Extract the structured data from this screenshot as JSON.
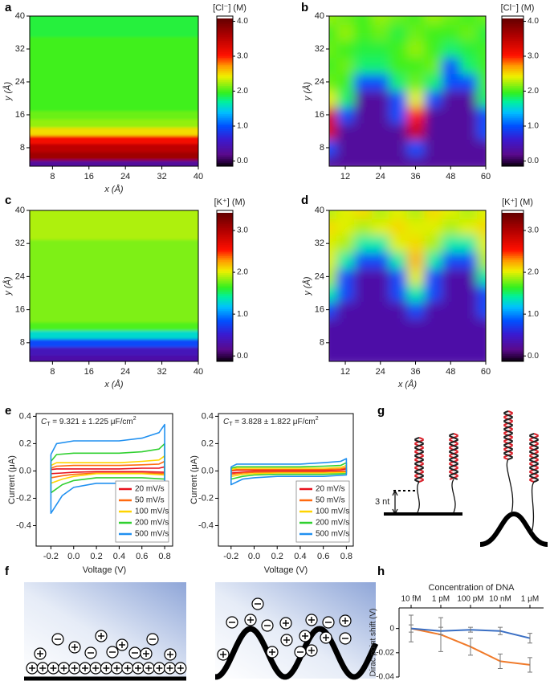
{
  "chart_data": [
    {
      "type": "heatmap",
      "panel": "a",
      "xlabel": "x (Å)",
      "ylabel": "y (Å)",
      "colorbar_label": "[Cl⁻] (M)",
      "y": [
        4,
        6,
        8,
        10,
        12,
        14,
        16,
        18,
        20,
        22,
        24,
        26,
        28,
        30,
        32,
        34,
        36,
        38,
        40
      ],
      "values": [
        0.3,
        3.7,
        3.5,
        3.1,
        2.5,
        2.2,
        2.1,
        2.0,
        2.0,
        2.0,
        2.0,
        2.0,
        2.0,
        2.0,
        2.0,
        2.0,
        1.9,
        1.9,
        1.9
      ],
      "xlim": [
        3,
        40
      ],
      "ylim": [
        3.5,
        40
      ],
      "xticks": [
        8,
        16,
        24,
        32,
        40
      ],
      "yticks": [
        8,
        16,
        24,
        32,
        40
      ],
      "clim": [
        -0.15,
        4.15
      ],
      "cticks": [
        {
          "value": 0,
          "label": "0.0"
        },
        {
          "value": 1,
          "label": "1.0"
        },
        {
          "value": 2,
          "label": "2.0"
        },
        {
          "value": 3,
          "label": "3.0"
        },
        {
          "value": 4,
          "label": "4.0"
        }
      ]
    },
    {
      "type": "heatmap",
      "panel": "b",
      "ylabel": "y (Å)",
      "colorbar_label": "[Cl⁻] (M)",
      "x": [
        6,
        12,
        18,
        24,
        30,
        36,
        42,
        48,
        54,
        60
      ],
      "y": [
        4,
        8,
        12,
        16,
        20,
        24,
        28,
        32,
        36,
        40
      ],
      "z": [
        [
          0.3,
          0.3,
          0.3,
          0.3,
          0.3,
          0.3,
          0.3,
          0.3,
          0.3,
          0.3
        ],
        [
          1.0,
          0.3,
          0.3,
          0.3,
          0.3,
          1.0,
          0.3,
          0.3,
          0.3,
          0.3
        ],
        [
          3.3,
          0.3,
          0.3,
          0.3,
          0.3,
          3.4,
          0.3,
          0.3,
          0.3,
          1.0
        ],
        [
          3.3,
          1.0,
          0.3,
          0.3,
          1.0,
          3.0,
          0.3,
          0.3,
          0.3,
          1.0
        ],
        [
          2.4,
          1.8,
          0.3,
          0.3,
          1.0,
          2.4,
          1.0,
          0.3,
          0.3,
          1.8
        ],
        [
          2.1,
          2.0,
          1.0,
          1.0,
          1.8,
          2.1,
          1.8,
          1.0,
          1.0,
          2.0
        ],
        [
          2.0,
          2.1,
          1.8,
          1.8,
          2.0,
          2.0,
          2.1,
          1.0,
          1.8,
          2.0
        ],
        [
          2.1,
          2.0,
          1.9,
          1.9,
          2.0,
          2.2,
          2.0,
          1.8,
          1.9,
          2.0
        ],
        [
          2.0,
          2.2,
          2.0,
          2.1,
          1.9,
          2.1,
          2.0,
          2.0,
          2.1,
          1.9
        ],
        [
          2.2,
          2.1,
          2.0,
          2.2,
          2.1,
          2.0,
          2.2,
          2.1,
          2.0,
          2.1
        ]
      ],
      "xlim": [
        6.5,
        60
      ],
      "ylim": [
        3.5,
        40
      ],
      "xticks": [
        12,
        24,
        36,
        48,
        60
      ],
      "yticks": [
        8,
        16,
        24,
        32,
        40
      ],
      "clim": [
        -0.15,
        4.15
      ],
      "cticks": [
        {
          "value": 0,
          "label": "0.0"
        },
        {
          "value": 1,
          "label": "1.0"
        },
        {
          "value": 2,
          "label": "2.0"
        },
        {
          "value": 3,
          "label": "3.0"
        },
        {
          "value": 4,
          "label": "4.0"
        }
      ]
    },
    {
      "type": "heatmap",
      "panel": "c",
      "xlabel": "x (Å)",
      "ylabel": "y (Å)",
      "colorbar_label": "[K⁺] (M)",
      "y": [
        4,
        6,
        8,
        10,
        12,
        14,
        16,
        18,
        20,
        22,
        24,
        26,
        28,
        30,
        32,
        34,
        36,
        38,
        40
      ],
      "values": [
        0.3,
        0.4,
        0.8,
        1.3,
        1.7,
        1.8,
        1.8,
        1.8,
        1.8,
        1.8,
        1.8,
        1.8,
        1.8,
        1.8,
        1.8,
        1.9,
        1.9,
        1.9,
        1.9
      ],
      "xlim": [
        3,
        40
      ],
      "ylim": [
        3.5,
        40
      ],
      "xticks": [
        8,
        16,
        24,
        32,
        40
      ],
      "yticks": [
        8,
        16,
        24,
        32,
        40
      ],
      "clim": [
        -0.13,
        3.48
      ],
      "cticks": [
        {
          "value": 0,
          "label": "0.0"
        },
        {
          "value": 1,
          "label": "1.0"
        },
        {
          "value": 2,
          "label": "2.0"
        },
        {
          "value": 3,
          "label": "3.0"
        }
      ]
    },
    {
      "type": "heatmap",
      "panel": "d",
      "xlabel": "x (Å)",
      "ylabel": "y (Å)",
      "colorbar_label": "[K⁺] (M)",
      "x": [
        6,
        12,
        18,
        24,
        30,
        36,
        42,
        48,
        54,
        60
      ],
      "y": [
        4,
        8,
        12,
        16,
        20,
        24,
        28,
        32,
        36,
        40
      ],
      "z": [
        [
          0.3,
          0.3,
          0.3,
          0.3,
          0.3,
          0.3,
          0.3,
          0.3,
          0.3,
          0.3
        ],
        [
          0.3,
          0.3,
          0.3,
          0.3,
          0.3,
          0.3,
          0.3,
          0.3,
          0.3,
          0.3
        ],
        [
          0.3,
          0.3,
          0.3,
          0.3,
          0.3,
          0.3,
          0.3,
          0.3,
          0.3,
          0.3
        ],
        [
          0.8,
          0.3,
          0.3,
          0.3,
          0.3,
          0.8,
          0.3,
          0.3,
          0.3,
          0.8
        ],
        [
          1.4,
          0.8,
          0.3,
          0.3,
          0.8,
          1.4,
          0.8,
          0.3,
          0.3,
          0.8
        ],
        [
          1.9,
          0.8,
          0.3,
          0.3,
          0.8,
          2.0,
          0.8,
          0.3,
          0.3,
          1.4
        ],
        [
          2.0,
          1.4,
          0.8,
          0.8,
          1.4,
          2.2,
          1.4,
          0.8,
          0.8,
          1.9
        ],
        [
          2.0,
          1.9,
          1.4,
          1.4,
          2.0,
          2.1,
          1.9,
          1.4,
          1.4,
          2.0
        ],
        [
          2.1,
          2.0,
          1.9,
          2.0,
          2.1,
          2.0,
          2.0,
          1.9,
          2.0,
          2.1
        ],
        [
          1.9,
          2.0,
          2.1,
          1.9,
          2.0,
          1.9,
          2.1,
          2.0,
          1.9,
          2.0
        ]
      ],
      "xlim": [
        6.5,
        60
      ],
      "ylim": [
        3.5,
        40
      ],
      "xticks": [
        12,
        24,
        36,
        48,
        60
      ],
      "yticks": [
        8,
        16,
        24,
        32,
        40
      ],
      "clim": [
        -0.13,
        3.48
      ],
      "cticks": [
        {
          "value": 0,
          "label": "0.0"
        },
        {
          "value": 1,
          "label": "1.0"
        },
        {
          "value": 2,
          "label": "2.0"
        },
        {
          "value": 3,
          "label": "3.0"
        }
      ]
    },
    {
      "type": "line",
      "panel": "e",
      "annotation": [
        "C",
        "T",
        " = 9.321 ± 1.225 μF/cm",
        "2"
      ],
      "xlabel": "Voltage (V)",
      "ylabel": "Current (μA)",
      "x": [
        -0.2,
        -0.15,
        0,
        0.2,
        0.4,
        0.6,
        0.75,
        0.8,
        0.8,
        0.6,
        0.4,
        0.2,
        0,
        -0.1,
        -0.2,
        -0.2
      ],
      "series": [
        {
          "name": "20 mV/s",
          "color": "#e8101c",
          "values": [
            0.01,
            0.015,
            0.015,
            0.015,
            0.015,
            0.02,
            0.02,
            0.03,
            -0.01,
            -0.005,
            -0.005,
            -0.005,
            -0.01,
            -0.015,
            -0.02,
            0.01
          ]
        },
        {
          "name": "50 mV/s",
          "color": "#ff6a10",
          "values": [
            0.02,
            0.035,
            0.04,
            0.04,
            0.04,
            0.045,
            0.05,
            0.07,
            -0.02,
            -0.015,
            -0.015,
            -0.015,
            -0.025,
            -0.035,
            -0.05,
            0.02
          ]
        },
        {
          "name": "100 mV/s",
          "color": "#ffd400",
          "values": [
            0.04,
            0.06,
            0.06,
            0.06,
            0.06,
            0.07,
            0.08,
            0.11,
            -0.03,
            -0.02,
            -0.02,
            -0.02,
            -0.04,
            -0.06,
            -0.09,
            0.04
          ]
        },
        {
          "name": "200 mV/s",
          "color": "#30d030",
          "values": [
            0.07,
            0.12,
            0.13,
            0.13,
            0.13,
            0.14,
            0.16,
            0.2,
            -0.06,
            -0.05,
            -0.05,
            -0.05,
            -0.07,
            -0.1,
            -0.16,
            0.07
          ]
        },
        {
          "name": "500 mV/s",
          "color": "#2090f0",
          "values": [
            0.12,
            0.2,
            0.22,
            0.22,
            0.22,
            0.24,
            0.28,
            0.34,
            -0.12,
            -0.09,
            -0.09,
            -0.09,
            -0.12,
            -0.18,
            -0.31,
            0.12
          ]
        }
      ],
      "xlim": [
        -0.33,
        0.87
      ],
      "ylim": [
        -0.55,
        0.42
      ],
      "xticks": [
        -0.2,
        {
          "value": 0,
          "label": "0.0"
        },
        0.2,
        0.4,
        0.6,
        0.8
      ],
      "yticks": [
        -0.4,
        -0.2,
        {
          "value": 0,
          "label": "0.0"
        },
        0.2,
        0.4
      ],
      "legend": "lower right"
    },
    {
      "type": "line",
      "annotation": [
        "C",
        "T",
        " = 3.828 ± 1.822 μF/cm",
        "2"
      ],
      "xlabel": "Voltage (V)",
      "ylabel": "Current (μA)",
      "x": [
        -0.2,
        -0.15,
        0,
        0.2,
        0.4,
        0.6,
        0.75,
        0.8,
        0.8,
        0.6,
        0.4,
        0.2,
        0,
        -0.1,
        -0.2,
        -0.2
      ],
      "series": [
        {
          "name": "20 mV/s",
          "color": "#e8101c",
          "values": [
            0,
            0.005,
            0.005,
            0.005,
            0.005,
            0.005,
            0.01,
            0.015,
            0,
            -0.005,
            -0.005,
            -0.005,
            -0.005,
            -0.01,
            -0.015,
            0
          ]
        },
        {
          "name": "50 mV/s",
          "color": "#ff6a10",
          "values": [
            0.005,
            0.01,
            0.01,
            0.01,
            0.01,
            0.01,
            0.015,
            0.025,
            -0.005,
            -0.01,
            -0.01,
            -0.01,
            -0.01,
            -0.015,
            -0.025,
            0.005
          ]
        },
        {
          "name": "100 mV/s",
          "color": "#ffd400",
          "values": [
            0.01,
            0.02,
            0.02,
            0.02,
            0.02,
            0.02,
            0.025,
            0.04,
            -0.01,
            -0.015,
            -0.015,
            -0.015,
            -0.02,
            -0.025,
            -0.04,
            0.01
          ]
        },
        {
          "name": "200 mV/s",
          "color": "#30d030",
          "values": [
            0.02,
            0.03,
            0.03,
            0.03,
            0.03,
            0.035,
            0.04,
            0.06,
            -0.02,
            -0.025,
            -0.025,
            -0.025,
            -0.03,
            -0.04,
            -0.06,
            0.02
          ]
        },
        {
          "name": "500 mV/s",
          "color": "#2090f0",
          "values": [
            0.03,
            0.05,
            0.05,
            0.05,
            0.05,
            0.06,
            0.07,
            0.09,
            -0.03,
            -0.04,
            -0.04,
            -0.04,
            -0.05,
            -0.06,
            -0.1,
            0.03
          ]
        }
      ],
      "xlim": [
        -0.31,
        0.86
      ],
      "ylim": [
        -0.55,
        0.42
      ],
      "xticks": [
        -0.2,
        {
          "value": 0,
          "label": "0.0"
        },
        0.2,
        0.4,
        0.6,
        0.8
      ],
      "yticks": [
        -0.4,
        -0.2,
        {
          "value": 0,
          "label": "0.0"
        },
        0.2,
        0.4
      ],
      "legend": "lower right"
    },
    {
      "type": "line",
      "panel": "h",
      "xlabel": "Concentration of DNA",
      "ylabel": "Dirac point shift  (V)",
      "xaxis": "top",
      "categories": [
        "10 fM",
        "1 pM",
        "100 pM",
        "10 nM",
        "1 μM"
      ],
      "series": [
        {
          "color": "#f07a2a",
          "values": [
            0,
            -0.005,
            -0.015,
            -0.027,
            -0.03
          ],
          "errors": [
            0.011,
            0.014,
            0.007,
            0.006,
            0.006
          ]
        },
        {
          "color": "#3a6fc4",
          "values": [
            0,
            -0.002,
            -0.001,
            -0.002,
            -0.008
          ],
          "errors": [
            0.003,
            0.003,
            0.002,
            0.003,
            0.004
          ]
        }
      ],
      "ylim": [
        -0.04,
        0.017
      ],
      "yticks": [
        -0.04,
        -0.02,
        0
      ]
    }
  ],
  "diagrams": {
    "g": {
      "panel": "g",
      "label": "3 nt"
    },
    "f": {
      "panel": "f"
    }
  }
}
